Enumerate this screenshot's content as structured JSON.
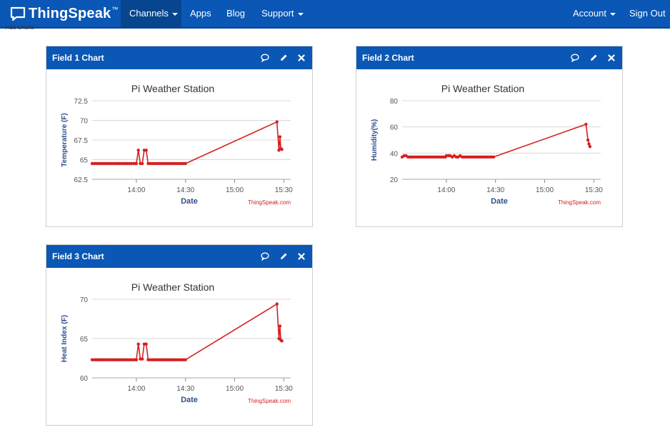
{
  "nav": {
    "logo": {
      "name": "ThingSpeak",
      "tm": "™"
    },
    "items": [
      {
        "label": "Channels",
        "dropdown": true,
        "active": true
      },
      {
        "label": "Apps",
        "dropdown": false,
        "active": false
      },
      {
        "label": "Blog",
        "dropdown": false,
        "active": false
      },
      {
        "label": "Support",
        "dropdown": true,
        "active": false
      }
    ],
    "account": "Account",
    "signout": "Sign Out",
    "cut_text": "Add Charts"
  },
  "colors": {
    "nav": "#0a57b5",
    "series": "#d62020",
    "axis_label": "#2f4f8f",
    "credit": "#d62020"
  },
  "icons": {
    "comment": "speech-bubble-icon",
    "edit": "pencil-icon",
    "close": "close-icon"
  },
  "panels": [
    {
      "title": "Field 1 Chart"
    },
    {
      "title": "Field 2 Chart"
    },
    {
      "title": "Field 3 Chart"
    }
  ],
  "chart_data": [
    {
      "type": "line",
      "title": "Pi Weather Station",
      "xlabel": "Date",
      "ylabel": "Temperature (F)",
      "yticks": [
        62.5,
        65,
        67.5,
        70,
        72.5
      ],
      "ylim": [
        62.5,
        72.5
      ],
      "xticks": [
        "14:00",
        "14:30",
        "15:00",
        "15:30"
      ],
      "xtick_values": [
        14.0,
        14.5,
        15.0,
        15.5
      ],
      "xlim": [
        13.55,
        15.57
      ],
      "credit": "ThingSpeak.com",
      "grid": true,
      "series": [
        {
          "x": [
            13.55,
            13.57,
            13.59,
            13.61,
            13.63,
            13.65,
            13.67,
            13.69,
            13.71,
            13.73,
            13.75,
            13.77,
            13.79,
            13.81,
            13.83,
            13.85,
            13.87,
            13.89,
            13.91,
            13.93,
            13.95,
            13.97,
            13.99,
            14.0,
            14.02,
            14.04,
            14.06,
            14.08,
            14.1,
            14.12,
            14.14,
            14.16,
            14.18,
            14.2,
            14.22,
            14.24,
            14.26,
            14.28,
            14.3,
            14.32,
            14.34,
            14.36,
            14.38,
            14.4,
            14.42,
            14.44,
            14.46,
            14.48,
            14.5,
            15.43,
            15.45,
            15.46,
            15.47,
            15.48
          ],
          "y": [
            64.5,
            64.5,
            64.5,
            64.5,
            64.5,
            64.5,
            64.5,
            64.5,
            64.5,
            64.5,
            64.5,
            64.5,
            64.5,
            64.5,
            64.5,
            64.5,
            64.5,
            64.5,
            64.5,
            64.5,
            64.5,
            64.5,
            64.5,
            64.5,
            66.2,
            64.5,
            64.5,
            66.2,
            66.2,
            64.5,
            64.5,
            64.5,
            64.5,
            64.5,
            64.5,
            64.5,
            64.5,
            64.5,
            64.5,
            64.5,
            64.5,
            64.5,
            64.5,
            64.5,
            64.5,
            64.5,
            64.5,
            64.5,
            64.5,
            69.8,
            66.2,
            67.9,
            66.4,
            66.3
          ]
        }
      ]
    },
    {
      "type": "line",
      "title": "Pi Weather Station",
      "xlabel": "Date",
      "ylabel": "Humidity(%)",
      "yticks": [
        20,
        40,
        60,
        80
      ],
      "ylim": [
        20,
        80
      ],
      "xticks": [
        "14:00",
        "14:30",
        "15:00",
        "15:30"
      ],
      "xtick_values": [
        14.0,
        14.5,
        15.0,
        15.5
      ],
      "xlim": [
        13.55,
        15.57
      ],
      "credit": "ThingSpeak.com",
      "grid": true,
      "series": [
        {
          "x": [
            13.55,
            13.57,
            13.59,
            13.61,
            13.63,
            13.65,
            13.67,
            13.69,
            13.71,
            13.73,
            13.75,
            13.77,
            13.79,
            13.81,
            13.83,
            13.85,
            13.87,
            13.89,
            13.91,
            13.93,
            13.95,
            13.97,
            13.99,
            14.0,
            14.02,
            14.04,
            14.06,
            14.08,
            14.1,
            14.12,
            14.14,
            14.16,
            14.18,
            14.2,
            14.22,
            14.24,
            14.26,
            14.28,
            14.3,
            14.32,
            14.34,
            14.36,
            14.38,
            14.4,
            14.42,
            14.44,
            14.46,
            14.48,
            15.42,
            15.44,
            15.45,
            15.46
          ],
          "y": [
            37,
            38,
            38,
            37,
            37,
            37,
            37,
            37,
            37,
            37,
            37,
            37,
            37,
            37,
            37,
            37,
            37,
            37,
            37,
            37,
            37,
            37,
            37,
            38,
            38,
            38,
            37,
            38,
            37,
            37,
            38,
            37,
            37,
            37,
            37,
            37,
            37,
            37,
            37,
            37,
            37,
            37,
            37,
            37,
            37,
            37,
            37,
            37,
            62,
            50,
            47,
            45
          ]
        }
      ]
    },
    {
      "type": "line",
      "title": "Pi Weather Station",
      "xlabel": "Date",
      "ylabel": "Heat Index (F)",
      "yticks": [
        60,
        65,
        70
      ],
      "ylim": [
        60,
        70
      ],
      "xticks": [
        "14:00",
        "14:30",
        "15:00",
        "15:30"
      ],
      "xtick_values": [
        14.0,
        14.5,
        15.0,
        15.5
      ],
      "xlim": [
        13.55,
        15.57
      ],
      "credit": "ThingSpeak.com",
      "grid": true,
      "series": [
        {
          "x": [
            13.55,
            13.57,
            13.59,
            13.61,
            13.63,
            13.65,
            13.67,
            13.69,
            13.71,
            13.73,
            13.75,
            13.77,
            13.79,
            13.81,
            13.83,
            13.85,
            13.87,
            13.89,
            13.91,
            13.93,
            13.95,
            13.97,
            13.99,
            14.0,
            14.02,
            14.04,
            14.06,
            14.08,
            14.1,
            14.12,
            14.14,
            14.16,
            14.18,
            14.2,
            14.22,
            14.24,
            14.26,
            14.28,
            14.3,
            14.32,
            14.34,
            14.36,
            14.38,
            14.4,
            14.42,
            14.44,
            14.46,
            14.48,
            14.5,
            15.43,
            15.45,
            15.46,
            15.47,
            15.48
          ],
          "y": [
            62.3,
            62.3,
            62.3,
            62.3,
            62.3,
            62.3,
            62.3,
            62.3,
            62.3,
            62.3,
            62.3,
            62.3,
            62.3,
            62.3,
            62.3,
            62.3,
            62.3,
            62.3,
            62.3,
            62.3,
            62.3,
            62.3,
            62.3,
            62.3,
            64.3,
            62.4,
            62.4,
            64.3,
            64.3,
            62.3,
            62.3,
            62.3,
            62.3,
            62.3,
            62.3,
            62.3,
            62.3,
            62.3,
            62.3,
            62.3,
            62.3,
            62.3,
            62.3,
            62.3,
            62.3,
            62.3,
            62.3,
            62.3,
            62.3,
            69.4,
            65.0,
            66.6,
            64.8,
            64.7
          ]
        }
      ]
    }
  ]
}
